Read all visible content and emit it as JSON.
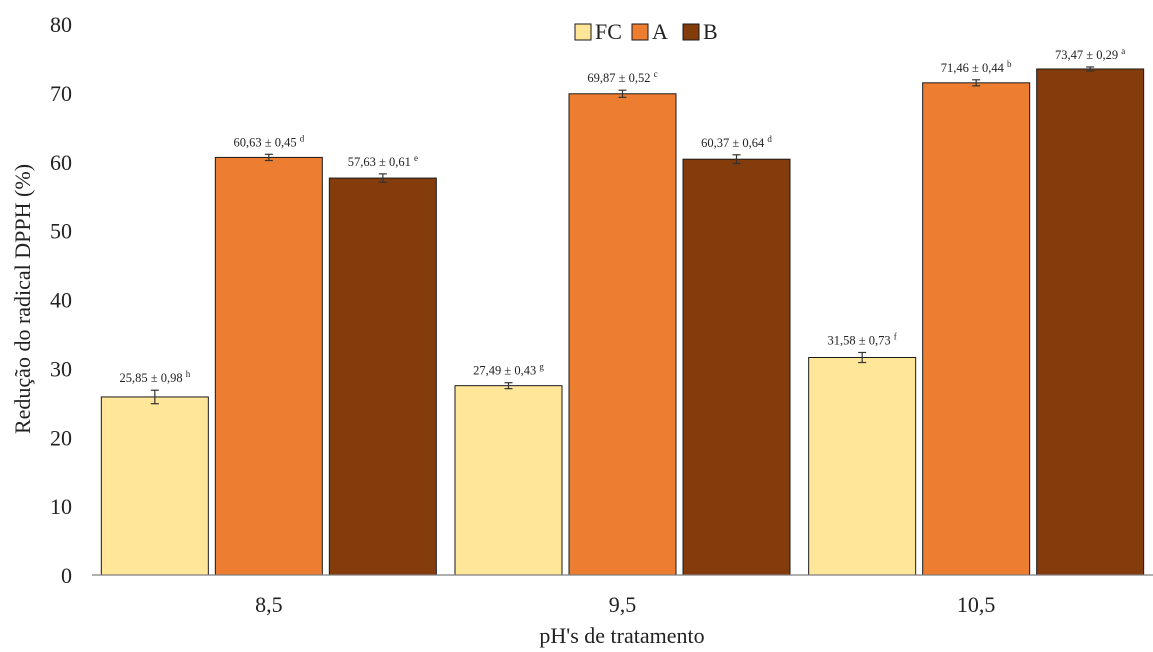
{
  "chart_data": {
    "type": "bar",
    "title": "",
    "xlabel": "pH's de tratamento",
    "ylabel": "Redução do radical DPPH (%)",
    "ylim": [
      0,
      80
    ],
    "yticks": [
      0,
      10,
      20,
      30,
      40,
      50,
      60,
      70,
      80
    ],
    "grid": false,
    "legend_position": "top-center",
    "categories": [
      "8,5",
      "9,5",
      "10,5"
    ],
    "series": [
      {
        "name": "FC",
        "color": "#FFE699",
        "values": [
          25.85,
          27.49,
          31.58
        ],
        "errors": [
          0.98,
          0.43,
          0.73
        ],
        "labels": [
          "25,85 ± 0,98",
          "27,49 ± 0,43",
          "31,58 ± 0,73"
        ],
        "letters": [
          "h",
          "g",
          "f"
        ]
      },
      {
        "name": "A",
        "color": "#ED7D31",
        "values": [
          60.63,
          69.87,
          71.46
        ],
        "errors": [
          0.45,
          0.52,
          0.44
        ],
        "labels": [
          "60,63 ± 0,45",
          "69,87 ± 0,52",
          "71,46 ± 0,44"
        ],
        "letters": [
          "d",
          "c",
          "b"
        ]
      },
      {
        "name": "B",
        "color": "#843C0C",
        "values": [
          57.63,
          60.37,
          73.47
        ],
        "errors": [
          0.61,
          0.64,
          0.29
        ],
        "labels": [
          "57,63 ± 0,61",
          "60,37 ± 0,64",
          "73,47 ± 0,29"
        ],
        "letters": [
          "e",
          "d",
          "a"
        ]
      }
    ]
  }
}
